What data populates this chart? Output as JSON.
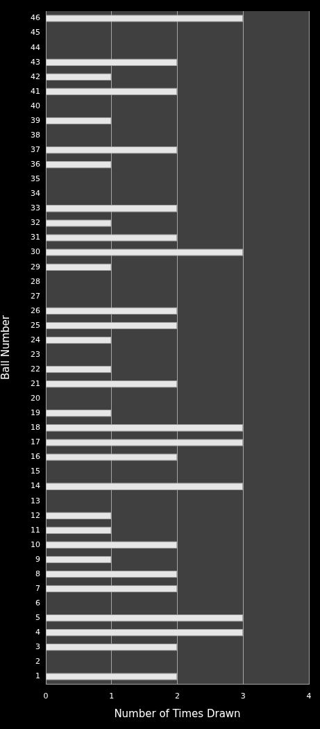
{
  "chart_data": {
    "type": "bar",
    "orientation": "horizontal",
    "categories": [
      "46",
      "45",
      "44",
      "43",
      "42",
      "41",
      "40",
      "39",
      "38",
      "37",
      "36",
      "35",
      "34",
      "33",
      "32",
      "31",
      "30",
      "29",
      "28",
      "27",
      "26",
      "25",
      "24",
      "23",
      "22",
      "21",
      "20",
      "19",
      "18",
      "17",
      "16",
      "15",
      "14",
      "13",
      "12",
      "11",
      "10",
      "9",
      "8",
      "7",
      "6",
      "5",
      "4",
      "3",
      "2",
      "1"
    ],
    "values": [
      3,
      0,
      0,
      2,
      1,
      2,
      0,
      1,
      0,
      2,
      1,
      0,
      0,
      2,
      1,
      2,
      3,
      1,
      0,
      0,
      2,
      2,
      1,
      0,
      1,
      2,
      0,
      1,
      3,
      3,
      2,
      0,
      3,
      0,
      1,
      1,
      2,
      1,
      2,
      2,
      0,
      3,
      3,
      2,
      0,
      2
    ],
    "color": "#e6e6e6",
    "xlabel": "Number of Times Drawn",
    "ylabel": "Ball Number",
    "xlim": [
      0,
      4
    ],
    "xticks": [
      0,
      1,
      2,
      3,
      4
    ],
    "grid": "x",
    "legend": false
  }
}
